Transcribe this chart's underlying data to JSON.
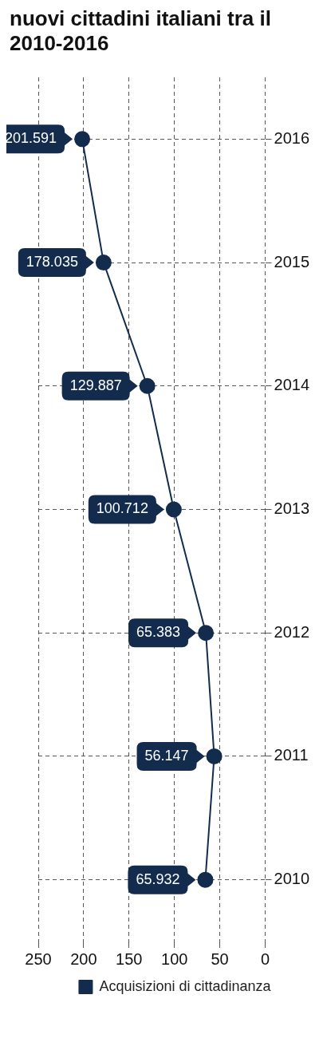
{
  "chart_data": {
    "type": "line",
    "title": "nuovi cittadini italiani tra il 2010-2016",
    "orientation": "horizontal",
    "categories": [
      "2016",
      "2015",
      "2014",
      "2013",
      "2012",
      "2011",
      "2010"
    ],
    "series": [
      {
        "name": "Acquisizioni di cittadinanza",
        "color": "#132c4e",
        "values": [
          201.591,
          178.035,
          129.887,
          100.712,
          65.383,
          56.147,
          65.932
        ]
      }
    ],
    "xlim": [
      250,
      0
    ],
    "xticks": [
      0,
      50,
      100,
      150,
      200,
      250
    ],
    "grid": true,
    "marker": "circle",
    "data_labels": true,
    "legend": "bottom"
  }
}
